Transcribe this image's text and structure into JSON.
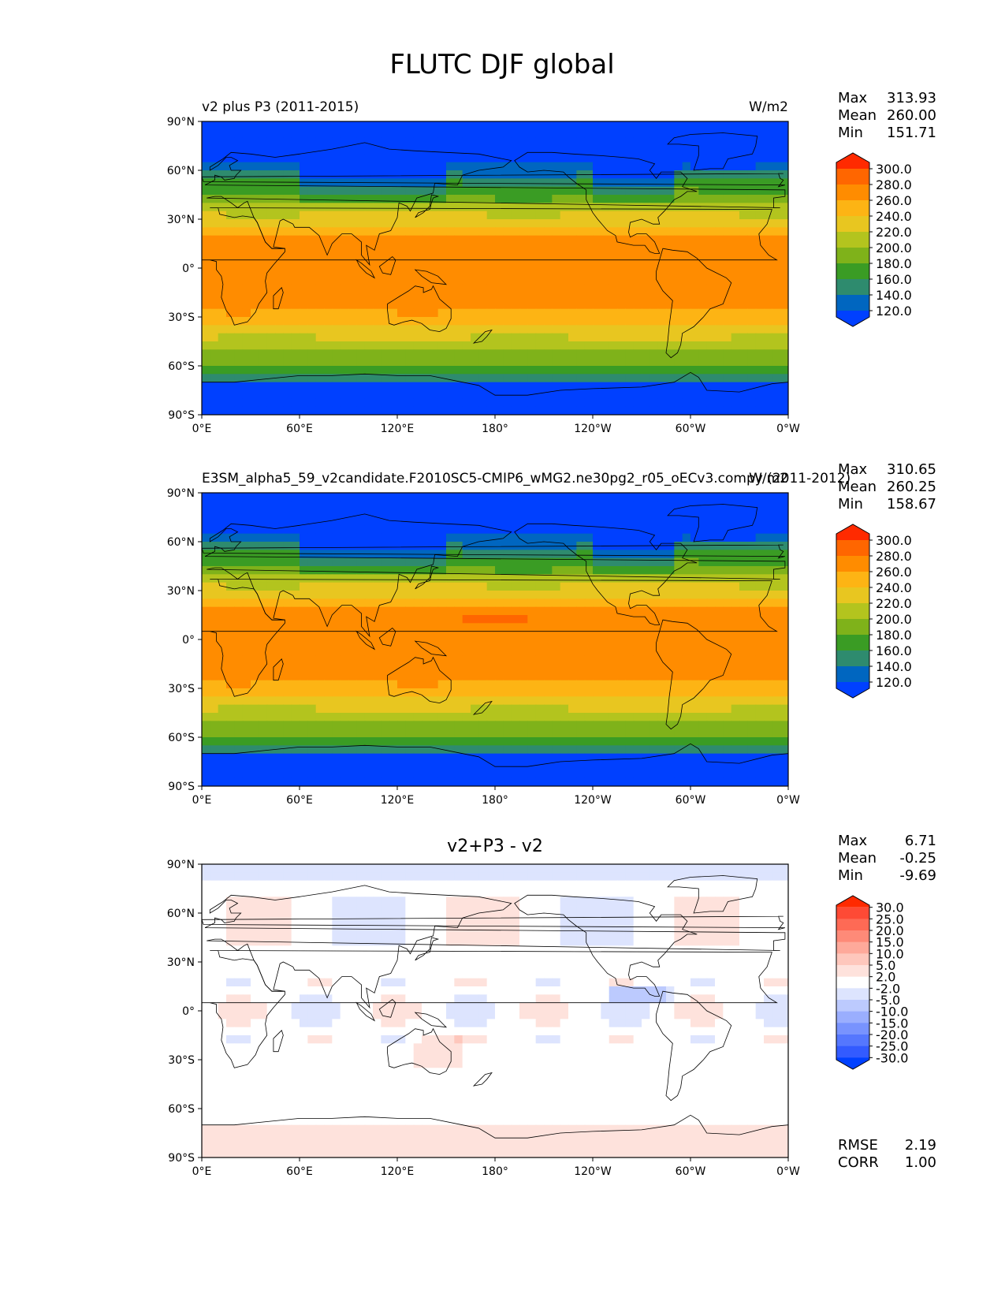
{
  "figure": {
    "title": "FLUTC DJF global",
    "lat_ticks": [
      "90°N",
      "60°N",
      "30°N",
      "0°",
      "30°S",
      "60°S",
      "90°S"
    ],
    "lon_ticks": [
      "0°E",
      "60°E",
      "120°E",
      "180°",
      "120°W",
      "60°W",
      "0°W"
    ]
  },
  "panels": [
    {
      "id": "test",
      "title_left": "v2 plus P3 (2011-2015)",
      "title_center": "",
      "units": "W/m2",
      "stats": [
        {
          "label": "Max",
          "value": "313.93"
        },
        {
          "label": "Mean",
          "value": "260.00"
        },
        {
          "label": "Min",
          "value": "151.71"
        }
      ],
      "colorbar": {
        "labels": [
          "300.0",
          "280.0",
          "260.0",
          "240.0",
          "220.0",
          "200.0",
          "180.0",
          "160.0",
          "140.0",
          "120.0"
        ],
        "colors": [
          "#ff2a00",
          "#ff6600",
          "#ff8c00",
          "#fdb414",
          "#e8c620",
          "#b3c41e",
          "#7fb21a",
          "#3a9c24",
          "#2e8b6e",
          "#0066c0",
          "#0040ff"
        ]
      },
      "field": "abs"
    },
    {
      "id": "reference",
      "title_left": "E3SM_alpha5_59_v2candidate.F2010SC5-CMIP6_wMG2.ne30pg2_r05_oECv3.compy (2011-2012)",
      "title_center": "",
      "units": "W/m2",
      "stats": [
        {
          "label": "Max",
          "value": "310.65"
        },
        {
          "label": "Mean",
          "value": "260.25"
        },
        {
          "label": "Min",
          "value": "158.67"
        }
      ],
      "colorbar": {
        "labels": [
          "300.0",
          "280.0",
          "260.0",
          "240.0",
          "220.0",
          "200.0",
          "180.0",
          "160.0",
          "140.0",
          "120.0"
        ],
        "colors": [
          "#ff2a00",
          "#ff6600",
          "#ff8c00",
          "#fdb414",
          "#e8c620",
          "#b3c41e",
          "#7fb21a",
          "#3a9c24",
          "#2e8b6e",
          "#0066c0",
          "#0040ff"
        ]
      },
      "field": "abs"
    },
    {
      "id": "diff",
      "title_left": "",
      "title_center": "v2+P3 - v2",
      "units": "",
      "stats": [
        {
          "label": "Max",
          "value": "6.71"
        },
        {
          "label": "Mean",
          "value": "-0.25"
        },
        {
          "label": "Min",
          "value": "-9.69"
        }
      ],
      "colorbar": {
        "labels": [
          "30.0",
          "25.0",
          "20.0",
          "15.0",
          "10.0",
          "5.0",
          "2.0",
          "-2.0",
          "-5.0",
          "-10.0",
          "-15.0",
          "-20.0",
          "-25.0",
          "-30.0"
        ],
        "colors": [
          "#ff2a00",
          "#fe4a35",
          "#fe6a55",
          "#fe8a78",
          "#fea99a",
          "#fec7bc",
          "#fee2dc",
          "#ffffff",
          "#dde4fe",
          "#bccafe",
          "#9aaefe",
          "#7893fe",
          "#5577fe",
          "#335bff",
          "#0040ff"
        ]
      },
      "extra_stats": [
        {
          "label": "RMSE",
          "value": "2.19"
        },
        {
          "label": "CORR",
          "value": "1.00"
        }
      ],
      "field": "diff"
    }
  ]
}
